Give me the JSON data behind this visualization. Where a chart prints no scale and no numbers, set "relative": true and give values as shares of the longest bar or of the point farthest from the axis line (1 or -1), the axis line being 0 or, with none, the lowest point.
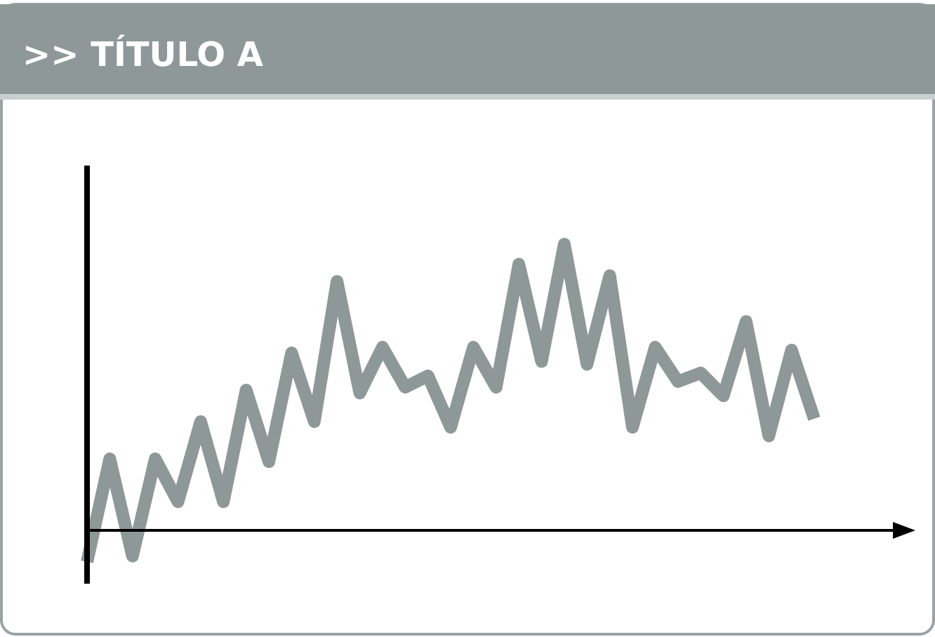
{
  "chart_data": {
    "type": "line",
    "title": ">> TÍTULO A",
    "relative": true,
    "color": "#8e9899",
    "line_style": "solid",
    "marker": "none",
    "categories": [
      null,
      null,
      null,
      null,
      null,
      null,
      null,
      null,
      null,
      null,
      null,
      null,
      null,
      null,
      null,
      null,
      null,
      null,
      null,
      null,
      null,
      null,
      null,
      null,
      null,
      null,
      null,
      null,
      null,
      null,
      null,
      null,
      null
    ],
    "values": [
      -0.11,
      0.25,
      -0.09,
      0.25,
      0.1,
      0.38,
      0.1,
      0.49,
      0.24,
      0.62,
      0.38,
      0.87,
      0.48,
      0.64,
      0.5,
      0.54,
      0.36,
      0.64,
      0.5,
      0.93,
      0.59,
      1,
      0.58,
      0.89,
      0.36,
      0.64,
      0.52,
      0.55,
      0.47,
      0.73,
      0.33,
      0.63,
      0.39
    ]
  }
}
